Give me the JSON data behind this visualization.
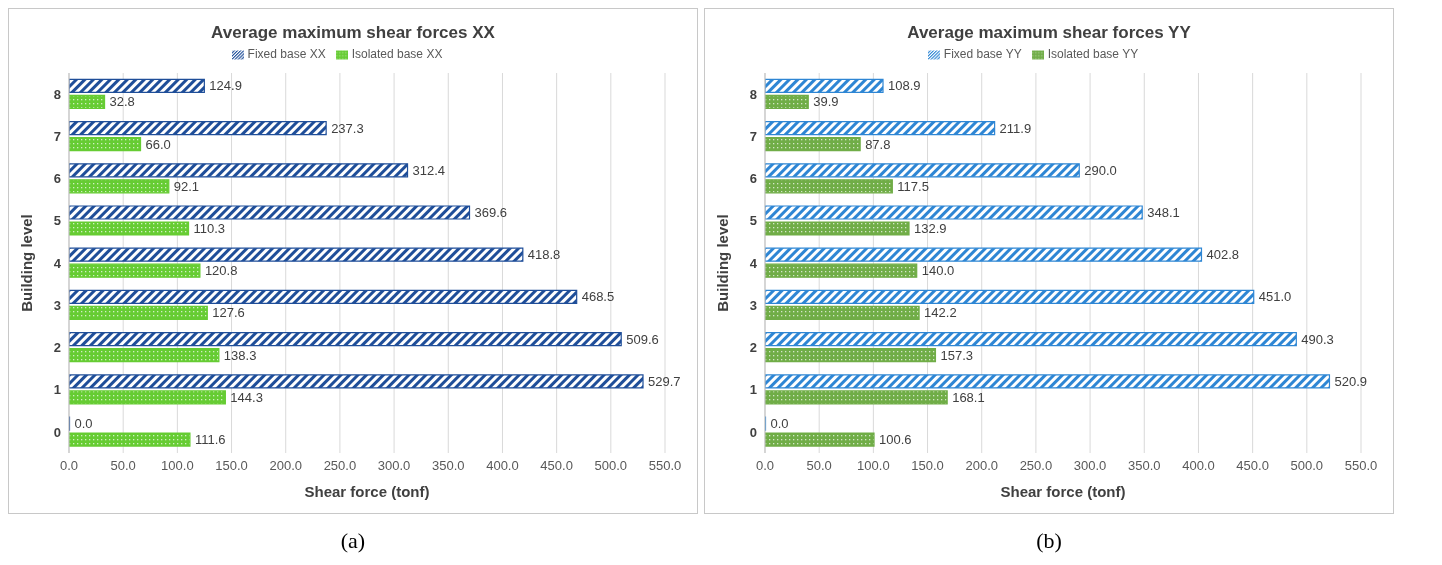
{
  "chart_data": [
    {
      "type": "bar",
      "orientation": "horizontal",
      "title": "Average maximum shear forces XX",
      "xlabel": "Shear force (tonf)",
      "ylabel": "Building level",
      "categories": [
        "8",
        "7",
        "6",
        "5",
        "4",
        "3",
        "2",
        "1",
        "0"
      ],
      "series": [
        {
          "name": "Fixed base XX",
          "color": "#1f4e99",
          "values": [
            124.9,
            237.3,
            312.4,
            369.6,
            418.8,
            468.5,
            509.6,
            529.7,
            0.0
          ],
          "value_labels": [
            "124.9",
            "237.3",
            "312.4",
            "369.6",
            "418.8",
            "468.5",
            "509.6",
            "529.7",
            "0.0"
          ]
        },
        {
          "name": "Isolated base XX",
          "color": "#66cc33",
          "values": [
            32.8,
            66.0,
            92.1,
            110.3,
            120.8,
            127.6,
            138.3,
            144.3,
            111.6
          ],
          "value_labels": [
            "32.8",
            "66.0",
            "92.1",
            "110.3",
            "120.8",
            "127.6",
            "138.3",
            "144.3",
            "111.6"
          ]
        }
      ],
      "xlim": [
        0,
        550
      ],
      "xticks": [
        {
          "value": 0,
          "label": "0.0"
        },
        {
          "value": 50,
          "label": "50.0"
        },
        {
          "value": 100,
          "label": "100.0"
        },
        {
          "value": 150,
          "label": "150.0"
        },
        {
          "value": 200,
          "label": "200.0"
        },
        {
          "value": 250,
          "label": "250.0"
        },
        {
          "value": 300,
          "label": "300.0"
        },
        {
          "value": 350,
          "label": "350.0"
        },
        {
          "value": 400,
          "label": "400.0"
        },
        {
          "value": 450,
          "label": "450.0"
        },
        {
          "value": 500,
          "label": "500.0"
        },
        {
          "value": 550,
          "label": "550.0"
        }
      ],
      "grid": "x",
      "legend": "top",
      "annotations": [
        "(a)"
      ]
    },
    {
      "type": "bar",
      "orientation": "horizontal",
      "title": "Average maximum shear forces YY",
      "xlabel": "Shear force (tonf)",
      "ylabel": "Building level",
      "categories": [
        "8",
        "7",
        "6",
        "5",
        "4",
        "3",
        "2",
        "1",
        "0"
      ],
      "series": [
        {
          "name": "Fixed base YY",
          "color": "#2e86d4",
          "values": [
            108.9,
            211.9,
            290.0,
            348.1,
            402.8,
            451.0,
            490.3,
            520.9,
            0.0
          ],
          "value_labels": [
            "108.9",
            "211.9",
            "290.0",
            "348.1",
            "402.8",
            "451.0",
            "490.3",
            "520.9",
            "0.0"
          ]
        },
        {
          "name": "Isolated base YY",
          "color": "#70ad47",
          "values": [
            39.9,
            87.8,
            117.5,
            132.9,
            140.0,
            142.2,
            157.3,
            168.1,
            100.6
          ],
          "value_labels": [
            "39.9",
            "87.8",
            "117.5",
            "132.9",
            "140.0",
            "142.2",
            "157.3",
            "168.1",
            "100.6"
          ]
        }
      ],
      "xlim": [
        0,
        550
      ],
      "xticks": [
        {
          "value": 0,
          "label": "0.0"
        },
        {
          "value": 50,
          "label": "50.0"
        },
        {
          "value": 100,
          "label": "100.0"
        },
        {
          "value": 150,
          "label": "150.0"
        },
        {
          "value": 200,
          "label": "200.0"
        },
        {
          "value": 250,
          "label": "250.0"
        },
        {
          "value": 300,
          "label": "300.0"
        },
        {
          "value": 350,
          "label": "350.0"
        },
        {
          "value": 400,
          "label": "400.0"
        },
        {
          "value": 450,
          "label": "450.0"
        },
        {
          "value": 500,
          "label": "500.0"
        },
        {
          "value": 550,
          "label": "550.0"
        }
      ],
      "grid": "x",
      "legend": "top",
      "annotations": [
        "(b)"
      ]
    }
  ]
}
